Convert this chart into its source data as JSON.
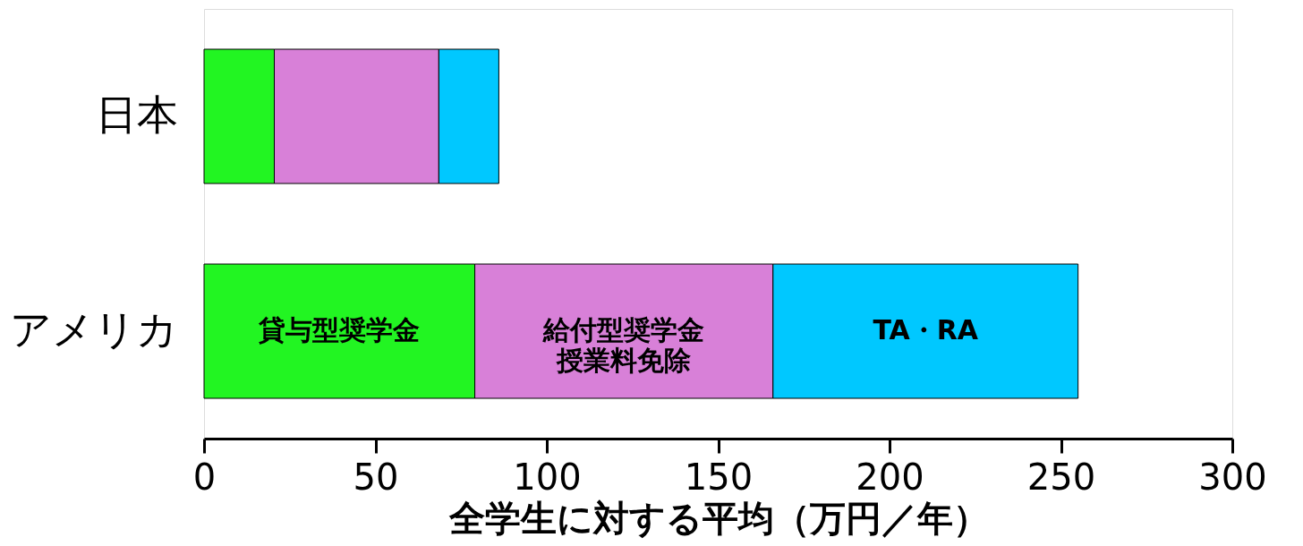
{
  "chart_data": {
    "type": "bar",
    "orientation": "horizontal",
    "stacked": true,
    "categories": [
      "日本",
      "アメリカ"
    ],
    "series": [
      {
        "name": "貸与型奨学金",
        "color": "#22f522",
        "values": [
          20.5,
          79
        ]
      },
      {
        "name": "給付型奨学金授業料免除",
        "color": "#d880d8",
        "values": [
          48,
          87
        ]
      },
      {
        "name": "TA・RA",
        "color": "#00c8ff",
        "values": [
          17.5,
          89
        ]
      }
    ],
    "xlabel": "全学生に対する平均（万円／年）",
    "xlim": [
      0,
      300
    ],
    "xticks": [
      0,
      50,
      100,
      150,
      200,
      250,
      300
    ],
    "grid": false,
    "legend": false
  }
}
